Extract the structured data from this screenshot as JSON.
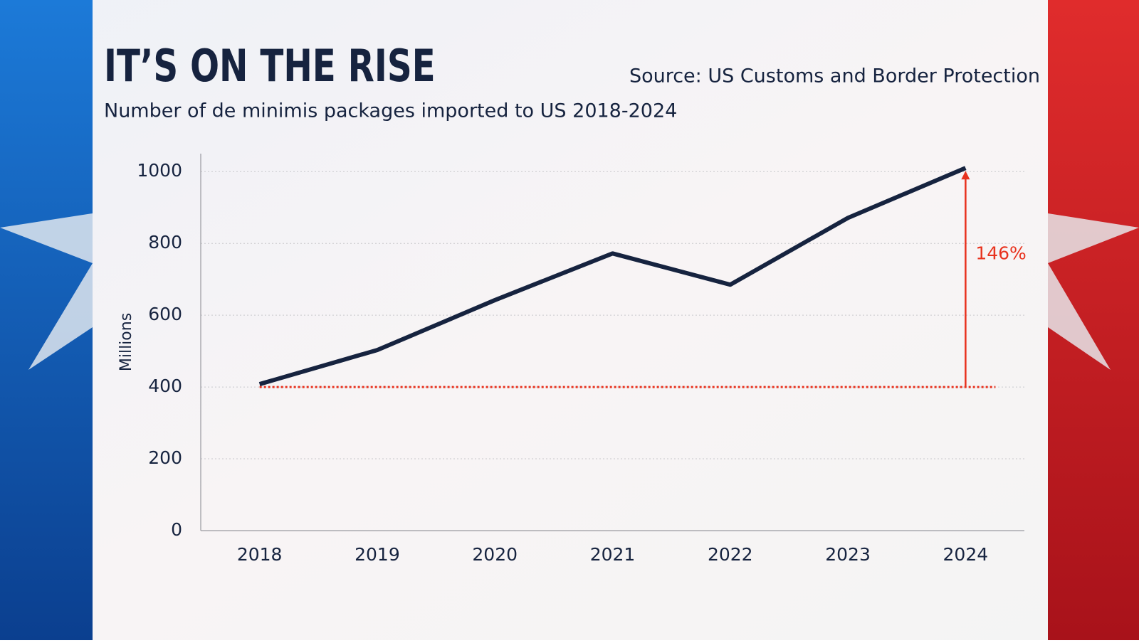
{
  "chart_data": {
    "type": "line",
    "title": "IT’S ON THE RISE",
    "subtitle": "Number of de minimis packages imported to US 2018-2024",
    "source": "Source: US Customs and Border Protection",
    "y_label": "Millions",
    "categories": [
      "2018",
      "2019",
      "2020",
      "2021",
      "2022",
      "2023",
      "2024"
    ],
    "series": [
      {
        "name": "De minimis packages",
        "color": "#16233f",
        "values": [
          408,
          503,
          642,
          772,
          685,
          871,
          1010
        ]
      }
    ],
    "ylim": [
      0,
      1050
    ],
    "yticks": [
      0,
      200,
      400,
      600,
      800,
      1000
    ],
    "grid": true,
    "reference_value": 400,
    "reference_color": "#e8321e",
    "annotation": "146%"
  }
}
